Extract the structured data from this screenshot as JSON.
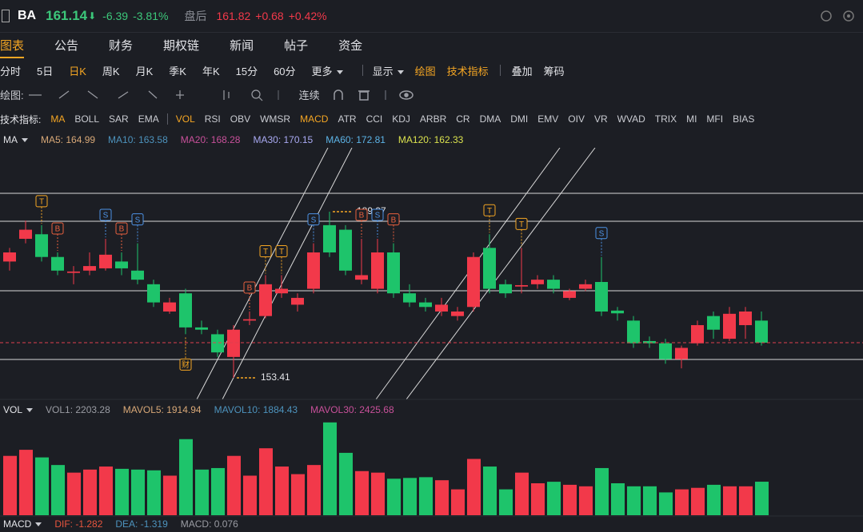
{
  "header": {
    "symbol": "BA",
    "price": "161.14",
    "arrow": "⬇",
    "change": "-6.39",
    "change_pct": "-3.81%",
    "after_hours_label": "盘后",
    "after_price": "161.82",
    "after_change": "+0.68",
    "after_pct": "+0.42%"
  },
  "tabs": [
    {
      "label": "图表",
      "active": true
    },
    {
      "label": "公告"
    },
    {
      "label": "财务"
    },
    {
      "label": "期权链"
    },
    {
      "label": "新闻"
    },
    {
      "label": "帖子"
    },
    {
      "label": "资金"
    }
  ],
  "periods": [
    {
      "label": "分时"
    },
    {
      "label": "5日"
    },
    {
      "label": "日K",
      "active": true
    },
    {
      "label": "周K"
    },
    {
      "label": "月K"
    },
    {
      "label": "季K"
    },
    {
      "label": "年K"
    },
    {
      "label": "15分"
    },
    {
      "label": "60分"
    },
    {
      "label": "更多",
      "menu": true
    }
  ],
  "toolbar": [
    {
      "label": "显示",
      "menu": true
    },
    {
      "label": "绘图",
      "active": true
    },
    {
      "label": "技术指标",
      "active": true
    },
    {
      "label": "叠加",
      "sep": true
    },
    {
      "label": "筹码"
    }
  ],
  "draw_toolbar": {
    "label": "绘图:",
    "continuous": "连续"
  },
  "indicators": {
    "label": "技术指标:",
    "items": [
      {
        "label": "MA",
        "active": true
      },
      {
        "label": "BOLL"
      },
      {
        "label": "SAR"
      },
      {
        "label": "EMA"
      },
      {
        "label": "VOL",
        "active": true,
        "sep": true
      },
      {
        "label": "RSI"
      },
      {
        "label": "OBV"
      },
      {
        "label": "WMSR"
      },
      {
        "label": "MACD",
        "active": true
      },
      {
        "label": "ATR"
      },
      {
        "label": "CCI"
      },
      {
        "label": "KDJ"
      },
      {
        "label": "ARBR"
      },
      {
        "label": "CR"
      },
      {
        "label": "DMA"
      },
      {
        "label": "DMI"
      },
      {
        "label": "EMV"
      },
      {
        "label": "OIV"
      },
      {
        "label": "VR"
      },
      {
        "label": "WVAD"
      },
      {
        "label": "TRIX"
      },
      {
        "label": "MI"
      },
      {
        "label": "MFI"
      },
      {
        "label": "BIAS"
      }
    ]
  },
  "legends": {
    "ma": {
      "name": "MA",
      "items": [
        {
          "text": "MA5: 164.99",
          "color": "#d8a877"
        },
        {
          "text": "MA10: 163.58",
          "color": "#4d93bd"
        },
        {
          "text": "MA20: 168.28",
          "color": "#c8509a"
        },
        {
          "text": "MA30: 170.15",
          "color": "#a9a9f2"
        },
        {
          "text": "MA60: 172.81",
          "color": "#5cb3e6"
        },
        {
          "text": "MA120: 162.33",
          "color": "#dbe24e"
        }
      ]
    },
    "vol": {
      "name": "VOL",
      "items": [
        {
          "text": "VOL1: 2203.28",
          "color": "#9a9ca3"
        },
        {
          "text": "MAVOL5: 1914.94",
          "color": "#d8a877"
        },
        {
          "text": "MAVOL10: 1884.43",
          "color": "#4d93bd"
        },
        {
          "text": "MAVOL30: 2425.68",
          "color": "#c8509a"
        }
      ]
    },
    "macd": {
      "name": "MACD",
      "items": [
        {
          "text": "DIF: -1.282",
          "color": "#e8553e"
        },
        {
          "text": "DEA: -1.319",
          "color": "#4d93bd"
        },
        {
          "text": "MACD: 0.076",
          "color": "#9a9ca3"
        }
      ]
    }
  },
  "chart": {
    "ylim": [
      148.66,
      204.03
    ],
    "vlim": [
      0,
      6562
    ],
    "up_color": "#f2394a",
    "down_color": "#1ec46b",
    "candles": [
      [
        179,
        181,
        182,
        177
      ],
      [
        184,
        186,
        188,
        183
      ],
      [
        185,
        180,
        187,
        179
      ],
      [
        180,
        177,
        181,
        176
      ],
      [
        176.5,
        176.8,
        178,
        174
      ],
      [
        177,
        178,
        181,
        176
      ],
      [
        177.5,
        180.5,
        184,
        177
      ],
      [
        179,
        177.5,
        181,
        176
      ],
      [
        177,
        175,
        183,
        174
      ],
      [
        174,
        170,
        175,
        169
      ],
      [
        168,
        170,
        171,
        167.5
      ],
      [
        172,
        164.5,
        173,
        163
      ],
      [
        164.5,
        164,
        166,
        163
      ],
      [
        163,
        159,
        164,
        158
      ],
      [
        158,
        164,
        165,
        153.41
      ],
      [
        166,
        166.3,
        168,
        165
      ],
      [
        167,
        174,
        176,
        166.5
      ],
      [
        172,
        173,
        176,
        171
      ],
      [
        169.5,
        171,
        172,
        168
      ],
      [
        173,
        181,
        183,
        172
      ],
      [
        187,
        181,
        189.97,
        180
      ],
      [
        186,
        177,
        187,
        176
      ],
      [
        175,
        176,
        184,
        174
      ],
      [
        173,
        181,
        184,
        172
      ],
      [
        181,
        172,
        183,
        171
      ],
      [
        172,
        170,
        174,
        169
      ],
      [
        170,
        169,
        171,
        168
      ],
      [
        168,
        169.5,
        171,
        167
      ],
      [
        167,
        168,
        169,
        166
      ],
      [
        169,
        180,
        181,
        168
      ],
      [
        182,
        173,
        185,
        172
      ],
      [
        174,
        172,
        175,
        171
      ],
      [
        173.5,
        173.8,
        182,
        172
      ],
      [
        174,
        175,
        176,
        173
      ],
      [
        175,
        173,
        176,
        172
      ],
      [
        171,
        172.5,
        173,
        170.5
      ],
      [
        173,
        174,
        175,
        172.5
      ],
      [
        174.5,
        168,
        180,
        167
      ],
      [
        168.2,
        167.6,
        169,
        166
      ],
      [
        166,
        161,
        167,
        160
      ],
      [
        161.5,
        161,
        162.5,
        160
      ],
      [
        161,
        157.5,
        162,
        156.5
      ],
      [
        157.5,
        160,
        160.5,
        155.5
      ],
      [
        161,
        165,
        166,
        160.5
      ],
      [
        167,
        164,
        168,
        162
      ],
      [
        162,
        167.5,
        169,
        161.5
      ],
      [
        165,
        168,
        169,
        162
      ],
      [
        166,
        161.14,
        168,
        160.5
      ]
    ],
    "volumes": [
      3900,
      4300,
      3800,
      3300,
      2800,
      3000,
      3200,
      3050,
      3000,
      2950,
      2600,
      5000,
      3000,
      3100,
      3900,
      2600,
      4400,
      3200,
      2700,
      3300,
      6100,
      4100,
      2900,
      2800,
      2400,
      2450,
      2500,
      2300,
      1700,
      3700,
      3200,
      1700,
      2800,
      2100,
      2200,
      2000,
      1900,
      3100,
      2100,
      1900,
      1900,
      1500,
      1700,
      1800,
      2000,
      1900,
      1900,
      2203.28
    ],
    "markers": [
      {
        "label": "T",
        "index": 2
      },
      {
        "label": "B",
        "index": 3
      },
      {
        "label": "S",
        "index": 6
      },
      {
        "label": "B",
        "index": 7
      },
      {
        "label": "S",
        "index": 8
      },
      {
        "label": "B",
        "index": 15
      },
      {
        "label": "T",
        "index": 16
      },
      {
        "label": "T",
        "index": 17
      },
      {
        "label": "S",
        "index": 19
      },
      {
        "label": "B",
        "index": 22
      },
      {
        "label": "S",
        "index": 23
      },
      {
        "label": "B",
        "index": 24
      },
      {
        "label": "T",
        "index": 30
      },
      {
        "label": "T",
        "index": 32
      },
      {
        "label": "S",
        "index": 37
      },
      {
        "label": "财",
        "index": 11,
        "below": true
      }
    ],
    "high_label": {
      "text": "189.97",
      "index": 20
    },
    "low_label": {
      "text": "153.41",
      "index": 14
    }
  }
}
